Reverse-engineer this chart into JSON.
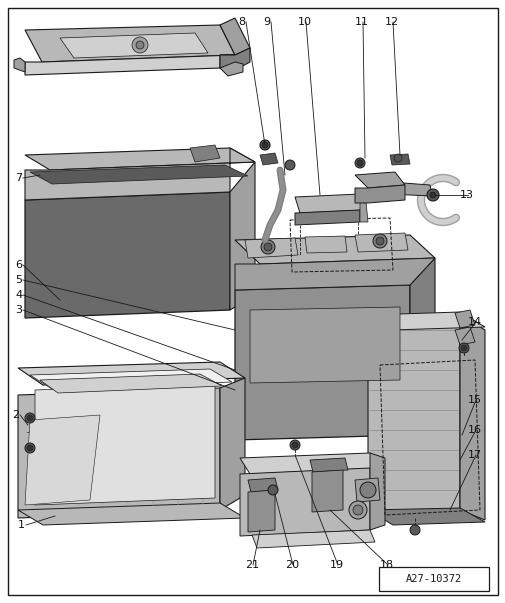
{
  "bg_color": "#ffffff",
  "fig_width": 5.06,
  "fig_height": 6.03,
  "dpi": 100,
  "watermark": "A27-10372",
  "line_color": "#1a1a1a",
  "label_fontsize": 8.0,
  "label_color": "#111111",
  "gray_very_light": "#e8e8e8",
  "gray_light": "#d0d0d0",
  "gray_mid_light": "#b8b8b8",
  "gray_mid": "#a0a0a0",
  "gray_dark": "#808080",
  "gray_very_dark": "#606060",
  "gray_body": "#909090",
  "gray_inner": "#6a6a6a",
  "gray_shadow": "#5a5a5a"
}
